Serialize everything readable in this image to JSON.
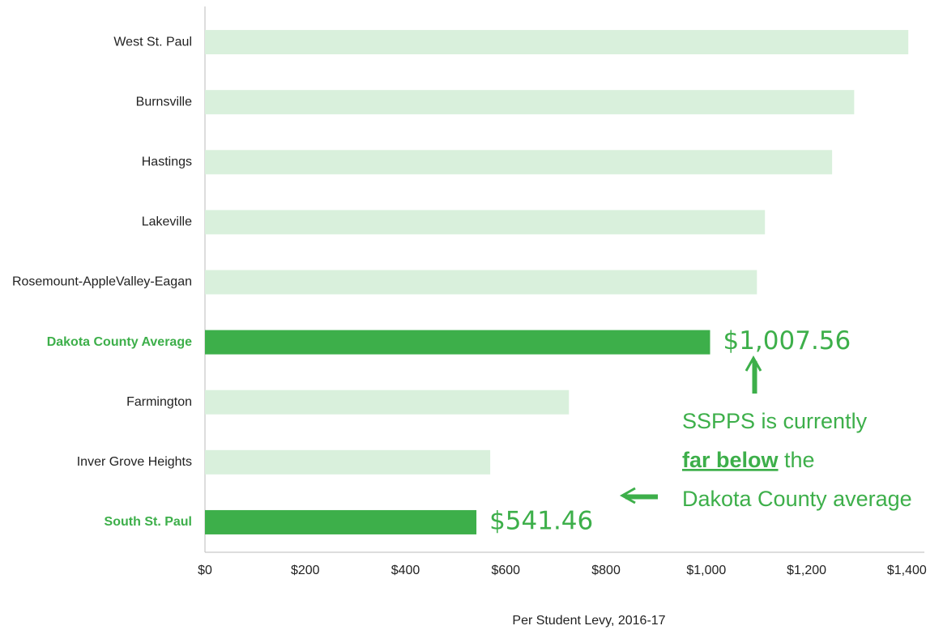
{
  "chart_data": {
    "type": "bar",
    "orientation": "horizontal",
    "categories": [
      "West St. Paul",
      "Burnsville",
      "Hastings",
      "Lakeville",
      "Rosemount-AppleValley-Eagan",
      "Dakota County Average",
      "Farmington",
      "Inver Grove Heights",
      "South St. Paul"
    ],
    "values": [
      1403,
      1295,
      1251,
      1117,
      1101,
      1007.56,
      726,
      569,
      541.46
    ],
    "value_labels": [
      null,
      null,
      null,
      null,
      null,
      "$1,007.56",
      null,
      null,
      "$541.46"
    ],
    "emphasis": [
      false,
      false,
      false,
      false,
      false,
      true,
      false,
      false,
      true
    ],
    "color": "#d9f0dc",
    "emphasis_color": "#3daf4a",
    "xlim": [
      0,
      1435
    ],
    "xticks": [
      {
        "value": 0,
        "label": "$0"
      },
      {
        "value": 200,
        "label": "$200"
      },
      {
        "value": 400,
        "label": "$400"
      },
      {
        "value": 600,
        "label": "$600"
      },
      {
        "value": 800,
        "label": "$800"
      },
      {
        "value": 1000,
        "label": "$1,000"
      },
      {
        "value": 1200,
        "label": "$1,200"
      },
      {
        "value": 1400,
        "label": "$1,400"
      }
    ],
    "x_label": "Per Student Levy, 2016-17",
    "annotation": {
      "line1": "SSPPS is currently",
      "bold": "far below",
      "after_bold": " the",
      "line3": "Dakota County average"
    },
    "grid": false
  }
}
